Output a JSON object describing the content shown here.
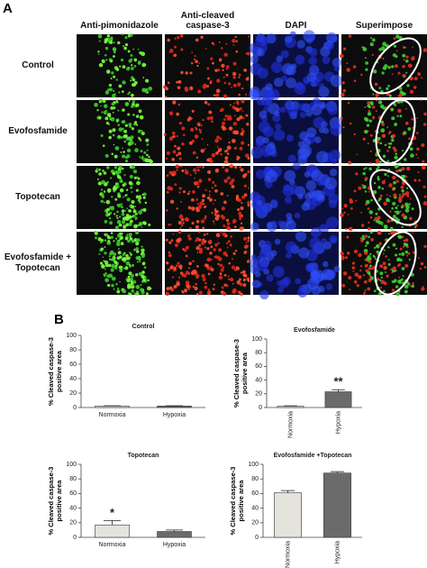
{
  "panel_a": {
    "label": "A",
    "columns": [
      "Anti-pimonidazole",
      "Anti-cleaved caspase-3",
      "DAPI",
      "Superimpose"
    ],
    "rows": [
      "Control",
      "Evofosfamide",
      "Topotecan",
      "Evofosfamide + Topotecan"
    ]
  },
  "panel_b_label": "B",
  "chart_data": [
    {
      "type": "bar",
      "title": "Control",
      "y_label": "% Cleaved caspase-3 positive area",
      "categories": [
        "Normoxia",
        "Hypoxia"
      ],
      "values": [
        2,
        2
      ],
      "errors": [
        0.5,
        0.5
      ],
      "colors": [
        "#e4e4dc",
        "#6b6b6b"
      ],
      "ylim": [
        0,
        100
      ],
      "yticks": [
        0,
        20,
        40,
        60,
        80,
        100
      ]
    },
    {
      "type": "bar",
      "title": "Evofosfamide",
      "y_label": "% Cleaved caspase-3 positive area",
      "categories": [
        "Normoxia",
        "Hypoxia"
      ],
      "values": [
        2,
        23
      ],
      "errors": [
        0.5,
        3
      ],
      "colors": [
        "#e4e4dc",
        "#6b6b6b"
      ],
      "significance": [
        null,
        "**"
      ],
      "ylim": [
        0,
        100
      ],
      "yticks": [
        0,
        20,
        40,
        60,
        80,
        100
      ]
    },
    {
      "type": "bar",
      "title": "Topotecan",
      "y_label": "% Cleaved caspase-3 positive area",
      "categories": [
        "Normoxia",
        "Hypoxia"
      ],
      "values": [
        17,
        8
      ],
      "errors": [
        6,
        2
      ],
      "colors": [
        "#e4e4dc",
        "#6b6b6b"
      ],
      "significance": [
        "*",
        null
      ],
      "ylim": [
        0,
        100
      ],
      "yticks": [
        0,
        20,
        40,
        60,
        80,
        100
      ]
    },
    {
      "type": "bar",
      "title": "Evofosfamide +Topotecan",
      "y_label": "% Cleaved caspase-3 positive area",
      "categories": [
        "Normoxia",
        "Hypoxia"
      ],
      "values": [
        61,
        88
      ],
      "errors": [
        3,
        2
      ],
      "colors": [
        "#e4e4dc",
        "#6b6b6b"
      ],
      "ylim": [
        0,
        100
      ],
      "yticks": [
        0,
        20,
        40,
        60,
        80,
        100
      ]
    }
  ]
}
